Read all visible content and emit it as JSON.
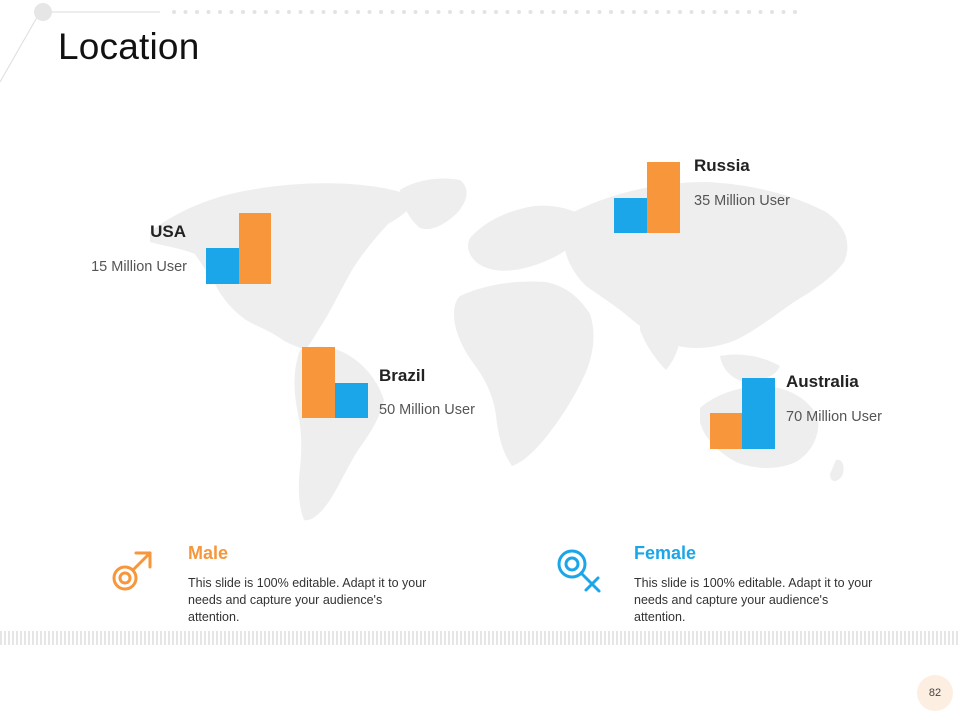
{
  "title": "Location",
  "colors": {
    "orange": "#F7963A",
    "blue": "#1AA6E8",
    "map": "#EEEEEE"
  },
  "countries": [
    {
      "name": "USA",
      "users": "15 Million User",
      "values": {
        "blue": 0.5,
        "orange": 1.0
      }
    },
    {
      "name": "Russia",
      "users": "35 Million User",
      "values": {
        "blue": 0.5,
        "orange": 1.0
      }
    },
    {
      "name": "Brazil",
      "users": "50 Million User",
      "values": {
        "orange": 1.0,
        "blue": 0.5
      }
    },
    {
      "name": "Australia",
      "users": "70 Million User",
      "values": {
        "orange": 0.5,
        "blue": 1.0
      }
    }
  ],
  "legend": {
    "male": {
      "title": "Male",
      "icon": "male-symbol-icon",
      "color": "#F7963A",
      "text": "This slide is 100% editable. Adapt it to your needs and capture your audience's attention."
    },
    "female": {
      "title": "Female",
      "icon": "female-symbol-icon",
      "color": "#1AA6E8",
      "text": "This slide is 100% editable. Adapt it to your needs and capture your audience's attention."
    }
  },
  "page_number": "82"
}
